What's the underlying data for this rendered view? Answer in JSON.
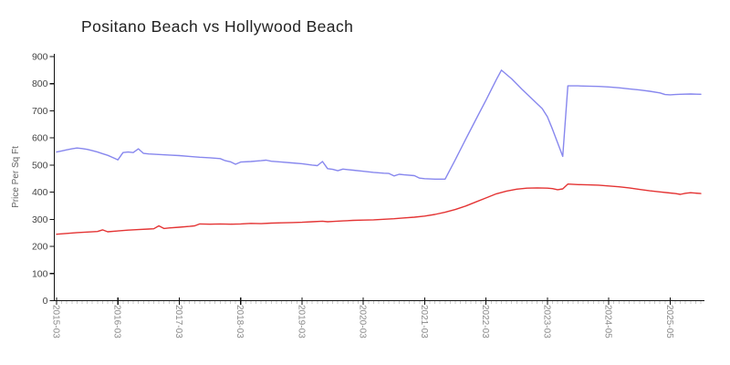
{
  "title": "Positano Beach vs Hollywood Beach",
  "colors": {
    "series_blue": "#8787ee",
    "series_red": "#e43434",
    "axis": "#111111",
    "minor_tick": "#c8c8c8",
    "x_tick_label": "#8a8a8a",
    "y_tick_label": "#444444",
    "axis_title": "#666666",
    "title_text": "#222222",
    "background": "#ffffff"
  },
  "chart_data": {
    "type": "line",
    "title": "Positano Beach vs Hollywood Beach",
    "xlabel": "",
    "ylabel": "Price Per Sq Ft",
    "ylim": [
      0,
      900
    ],
    "y_ticks": [
      0,
      100,
      200,
      300,
      400,
      500,
      600,
      700,
      800,
      900
    ],
    "grid": false,
    "legend_position": "none",
    "x_tick_labels": [
      "2015-03",
      "2016-03",
      "2017-03",
      "2018-03",
      "2019-03",
      "2020-03",
      "2021-03",
      "2022-03",
      "2023-03",
      "2024-05",
      "2025-05"
    ],
    "x_tick_indices": [
      0,
      12,
      24,
      36,
      48,
      60,
      72,
      84,
      96,
      108,
      120
    ],
    "x_index_max": 126,
    "x_minor_tick_every": 1,
    "series": [
      {
        "name": "Positano Beach",
        "color": "#8787ee",
        "points": [
          [
            0,
            548
          ],
          [
            1,
            552
          ],
          [
            2,
            556
          ],
          [
            3,
            560
          ],
          [
            4,
            563
          ],
          [
            5,
            561
          ],
          [
            6,
            558
          ],
          [
            7,
            553
          ],
          [
            8,
            548
          ],
          [
            9,
            542
          ],
          [
            10,
            536
          ],
          [
            11,
            528
          ],
          [
            12,
            519
          ],
          [
            13,
            546
          ],
          [
            14,
            548
          ],
          [
            15,
            546
          ],
          [
            16,
            560
          ],
          [
            17,
            543
          ],
          [
            18,
            541
          ],
          [
            20,
            539
          ],
          [
            22,
            537
          ],
          [
            24,
            535
          ],
          [
            26,
            532
          ],
          [
            28,
            529
          ],
          [
            30,
            527
          ],
          [
            32,
            524
          ],
          [
            33,
            516
          ],
          [
            34,
            512
          ],
          [
            35,
            503
          ],
          [
            36,
            511
          ],
          [
            38,
            513
          ],
          [
            40,
            516
          ],
          [
            41,
            518
          ],
          [
            42,
            514
          ],
          [
            44,
            511
          ],
          [
            46,
            508
          ],
          [
            48,
            505
          ],
          [
            50,
            500
          ],
          [
            51,
            498
          ],
          [
            52,
            513
          ],
          [
            53,
            487
          ],
          [
            54,
            484
          ],
          [
            55,
            479
          ],
          [
            56,
            485
          ],
          [
            57,
            483
          ],
          [
            58,
            481
          ],
          [
            60,
            477
          ],
          [
            62,
            473
          ],
          [
            64,
            470
          ],
          [
            65,
            469
          ],
          [
            66,
            460
          ],
          [
            67,
            466
          ],
          [
            68,
            464
          ],
          [
            70,
            461
          ],
          [
            71,
            452
          ],
          [
            72,
            450
          ],
          [
            74,
            448
          ],
          [
            76,
            448
          ],
          [
            78,
            520
          ],
          [
            80,
            595
          ],
          [
            82,
            668
          ],
          [
            84,
            740
          ],
          [
            86,
            815
          ],
          [
            87,
            850
          ],
          [
            89,
            818
          ],
          [
            91,
            780
          ],
          [
            93,
            744
          ],
          [
            95,
            708
          ],
          [
            96,
            678
          ],
          [
            97,
            632
          ],
          [
            98,
            582
          ],
          [
            99,
            532
          ],
          [
            100,
            792
          ],
          [
            102,
            792
          ],
          [
            104,
            791
          ],
          [
            106,
            790
          ],
          [
            108,
            788
          ],
          [
            110,
            785
          ],
          [
            112,
            781
          ],
          [
            114,
            777
          ],
          [
            116,
            772
          ],
          [
            118,
            766
          ],
          [
            119,
            760
          ],
          [
            120,
            759
          ],
          [
            121,
            760
          ],
          [
            122,
            761
          ],
          [
            124,
            762
          ],
          [
            126,
            761
          ]
        ]
      },
      {
        "name": "Hollywood Beach",
        "color": "#e43434",
        "points": [
          [
            0,
            245
          ],
          [
            2,
            248
          ],
          [
            4,
            251
          ],
          [
            6,
            253
          ],
          [
            8,
            255
          ],
          [
            9,
            261
          ],
          [
            10,
            254
          ],
          [
            12,
            257
          ],
          [
            14,
            260
          ],
          [
            16,
            262
          ],
          [
            18,
            264
          ],
          [
            19,
            265
          ],
          [
            20,
            276
          ],
          [
            21,
            266
          ],
          [
            22,
            268
          ],
          [
            24,
            271
          ],
          [
            26,
            274
          ],
          [
            27,
            276
          ],
          [
            28,
            283
          ],
          [
            30,
            282
          ],
          [
            32,
            283
          ],
          [
            34,
            282
          ],
          [
            36,
            283
          ],
          [
            38,
            285
          ],
          [
            40,
            284
          ],
          [
            42,
            286
          ],
          [
            44,
            287
          ],
          [
            46,
            288
          ],
          [
            48,
            289
          ],
          [
            50,
            291
          ],
          [
            52,
            293
          ],
          [
            53,
            291
          ],
          [
            54,
            292
          ],
          [
            56,
            294
          ],
          [
            58,
            296
          ],
          [
            60,
            297
          ],
          [
            62,
            298
          ],
          [
            64,
            300
          ],
          [
            66,
            302
          ],
          [
            68,
            305
          ],
          [
            70,
            308
          ],
          [
            72,
            312
          ],
          [
            74,
            318
          ],
          [
            76,
            326
          ],
          [
            78,
            336
          ],
          [
            80,
            349
          ],
          [
            82,
            364
          ],
          [
            84,
            379
          ],
          [
            86,
            394
          ],
          [
            88,
            404
          ],
          [
            90,
            411
          ],
          [
            92,
            415
          ],
          [
            94,
            416
          ],
          [
            96,
            415
          ],
          [
            97,
            413
          ],
          [
            98,
            409
          ],
          [
            99,
            412
          ],
          [
            100,
            430
          ],
          [
            102,
            428
          ],
          [
            104,
            427
          ],
          [
            106,
            426
          ],
          [
            108,
            423
          ],
          [
            110,
            420
          ],
          [
            112,
            416
          ],
          [
            114,
            410
          ],
          [
            116,
            405
          ],
          [
            118,
            401
          ],
          [
            120,
            397
          ],
          [
            121,
            395
          ],
          [
            122,
            392
          ],
          [
            123,
            396
          ],
          [
            124,
            398
          ],
          [
            126,
            395
          ]
        ]
      }
    ]
  }
}
